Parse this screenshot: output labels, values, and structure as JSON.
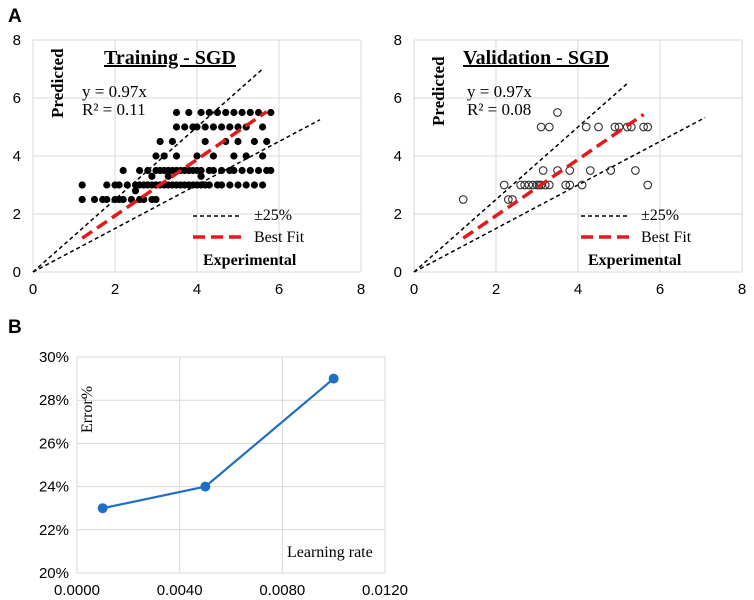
{
  "panel_labels": {
    "a": "A",
    "b": "B"
  },
  "chart_data": [
    {
      "type": "scatter",
      "title": "Training - SGD",
      "xlabel": "Experimental",
      "ylabel": "Predicted",
      "xlim": [
        0,
        8
      ],
      "ylim": [
        0,
        8
      ],
      "xticks": [
        "0",
        "2",
        "4",
        "6",
        "8"
      ],
      "yticks": [
        "0",
        "2",
        "4",
        "6",
        "8"
      ],
      "equation": "y = 0.97x",
      "r2": "R² = 0.11",
      "legend": {
        "band": "±25%",
        "fit": "Best Fit"
      },
      "fit_slope": 0.97,
      "fit_range": [
        1.2,
        5.7
      ],
      "band_upper_slope": 1.25,
      "band_lower_slope": 0.75,
      "band_upper_xmax": 5.6,
      "band_lower_xmax": 7.0,
      "points": [
        [
          1.2,
          2.5
        ],
        [
          1.2,
          3
        ],
        [
          1.5,
          2.5
        ],
        [
          1.7,
          2.5
        ],
        [
          1.8,
          2.5
        ],
        [
          1.8,
          3
        ],
        [
          2,
          2.5
        ],
        [
          2,
          3
        ],
        [
          2.1,
          2.5
        ],
        [
          2.1,
          3
        ],
        [
          2.2,
          2.5
        ],
        [
          2.2,
          3.5
        ],
        [
          2.3,
          3
        ],
        [
          2.4,
          2.5
        ],
        [
          2.5,
          3
        ],
        [
          2.6,
          2.5
        ],
        [
          2.6,
          3
        ],
        [
          2.6,
          3.5
        ],
        [
          2.7,
          2.5
        ],
        [
          2.7,
          3
        ],
        [
          2.8,
          3
        ],
        [
          2.8,
          3.5
        ],
        [
          2.9,
          3
        ],
        [
          2.9,
          2.5
        ],
        [
          3,
          3
        ],
        [
          3,
          3.5
        ],
        [
          3,
          2.5
        ],
        [
          3,
          4
        ],
        [
          3.1,
          3
        ],
        [
          3.1,
          3.5
        ],
        [
          3.1,
          4.5
        ],
        [
          3.2,
          3
        ],
        [
          3.2,
          3.5
        ],
        [
          3.2,
          4
        ],
        [
          3.3,
          3
        ],
        [
          3.3,
          3.5
        ],
        [
          3.4,
          3
        ],
        [
          3.4,
          3.5
        ],
        [
          3.4,
          4.5
        ],
        [
          3.5,
          3
        ],
        [
          3.5,
          3.5
        ],
        [
          3.5,
          4
        ],
        [
          3.5,
          5
        ],
        [
          3.5,
          5.5
        ],
        [
          3.6,
          3
        ],
        [
          3.6,
          3.5
        ],
        [
          3.7,
          3
        ],
        [
          3.7,
          3.5
        ],
        [
          3.7,
          5
        ],
        [
          3.8,
          3
        ],
        [
          3.8,
          3.5
        ],
        [
          3.8,
          5.5
        ],
        [
          3.9,
          3
        ],
        [
          3.9,
          3.5
        ],
        [
          3.9,
          5
        ],
        [
          4,
          3
        ],
        [
          4,
          3.5
        ],
        [
          4,
          4
        ],
        [
          4,
          5
        ],
        [
          4.1,
          3
        ],
        [
          4.1,
          3.5
        ],
        [
          4.1,
          5.5
        ],
        [
          4.2,
          3
        ],
        [
          4.2,
          4.5
        ],
        [
          4.2,
          5
        ],
        [
          4.3,
          3
        ],
        [
          4.3,
          3.5
        ],
        [
          4.3,
          5.5
        ],
        [
          4.4,
          3.5
        ],
        [
          4.4,
          4
        ],
        [
          4.4,
          5
        ],
        [
          4.5,
          3
        ],
        [
          4.5,
          5.5
        ],
        [
          4.6,
          3
        ],
        [
          4.6,
          3.5
        ],
        [
          4.6,
          5
        ],
        [
          4.7,
          4.5
        ],
        [
          4.7,
          5.5
        ],
        [
          4.8,
          3
        ],
        [
          4.8,
          3.5
        ],
        [
          4.8,
          5
        ],
        [
          4.9,
          3.5
        ],
        [
          4.9,
          4
        ],
        [
          4.9,
          5.5
        ],
        [
          5,
          3
        ],
        [
          5,
          4.5
        ],
        [
          5,
          5
        ],
        [
          5.1,
          3.5
        ],
        [
          5.1,
          5.5
        ],
        [
          5.2,
          3
        ],
        [
          5.2,
          4
        ],
        [
          5.2,
          5
        ],
        [
          5.3,
          3.5
        ],
        [
          5.3,
          5.5
        ],
        [
          5.4,
          3
        ],
        [
          5.4,
          4.5
        ],
        [
          5.5,
          3.5
        ],
        [
          5.5,
          5.5
        ],
        [
          5.6,
          3
        ],
        [
          5.6,
          4
        ],
        [
          5.6,
          5
        ],
        [
          5.7,
          3.5
        ],
        [
          5.7,
          4.5
        ],
        [
          5.8,
          5.5
        ],
        [
          5.8,
          3.5
        ],
        [
          4.1,
          3.3
        ],
        [
          3.3,
          3.3
        ],
        [
          2.9,
          3.3
        ],
        [
          2.5,
          2.8
        ]
      ]
    },
    {
      "type": "scatter",
      "title": "Validation - SGD",
      "xlabel": "Experimental",
      "ylabel": "Predicted",
      "xlim": [
        0,
        8
      ],
      "ylim": [
        0,
        8
      ],
      "xticks": [
        "0",
        "2",
        "4",
        "6",
        "8"
      ],
      "yticks": [
        "0",
        "2",
        "4",
        "6",
        "8"
      ],
      "equation": "y = 0.97x",
      "r2": "R² = 0.08",
      "legend": {
        "band": "±25%",
        "fit": "Best Fit"
      },
      "fit_slope": 0.97,
      "fit_range": [
        1.2,
        5.6
      ],
      "band_upper_slope": 1.25,
      "band_lower_slope": 0.75,
      "band_upper_xmax": 5.2,
      "band_lower_xmax": 7.1,
      "points": [
        [
          1.2,
          2.5
        ],
        [
          2.2,
          3
        ],
        [
          2.3,
          2.5
        ],
        [
          2.4,
          2.5
        ],
        [
          2.6,
          3
        ],
        [
          2.7,
          3
        ],
        [
          2.8,
          3
        ],
        [
          2.9,
          3
        ],
        [
          3,
          3
        ],
        [
          3.05,
          3
        ],
        [
          3.1,
          3
        ],
        [
          3.15,
          3.5
        ],
        [
          3.2,
          3
        ],
        [
          3.3,
          3
        ],
        [
          3.1,
          5
        ],
        [
          3.3,
          5
        ],
        [
          3.5,
          5.5
        ],
        [
          3.5,
          3.5
        ],
        [
          3.7,
          3
        ],
        [
          3.8,
          3
        ],
        [
          3.8,
          3.5
        ],
        [
          4.1,
          3
        ],
        [
          4.2,
          5
        ],
        [
          4.5,
          5
        ],
        [
          4.3,
          3.5
        ],
        [
          4.8,
          3.5
        ],
        [
          4.9,
          5
        ],
        [
          5,
          5
        ],
        [
          5.2,
          5
        ],
        [
          5.3,
          5
        ],
        [
          5.4,
          3.5
        ],
        [
          5.6,
          5
        ],
        [
          5.7,
          3
        ],
        [
          5.7,
          5
        ]
      ]
    },
    {
      "type": "line",
      "title": "",
      "xlabel": "Learning rate",
      "ylabel": "Error%",
      "xlim": [
        0,
        0.012
      ],
      "ylim": [
        0.2,
        0.3
      ],
      "xticks": [
        "0.0000",
        "0.0040",
        "0.0080",
        "0.0120"
      ],
      "yticks": [
        "20%",
        "22%",
        "24%",
        "26%",
        "28%",
        "30%"
      ],
      "x": [
        0.001,
        0.005,
        0.01
      ],
      "values": [
        0.23,
        0.24,
        0.29
      ],
      "color": "#1f6fc6"
    }
  ]
}
